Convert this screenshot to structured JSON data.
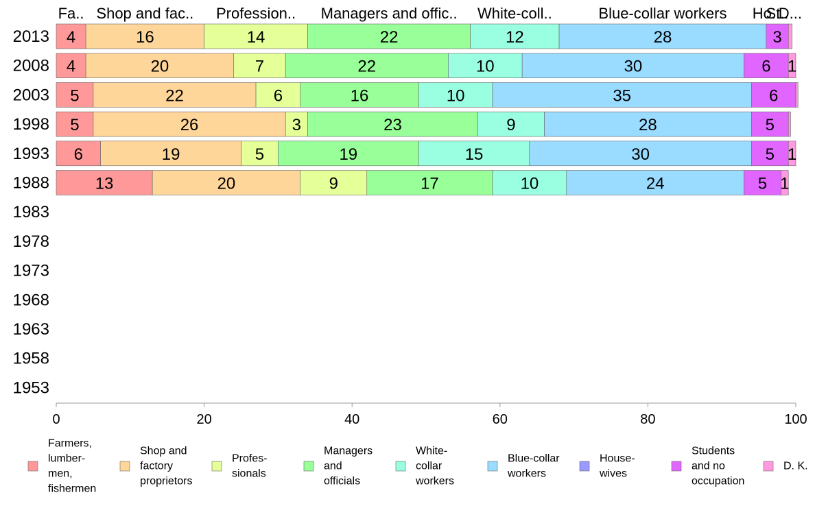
{
  "chart_data": {
    "type": "bar",
    "orientation": "horizontal",
    "stacked": true,
    "years": [
      "2013",
      "2008",
      "2003",
      "1998",
      "1993",
      "1988",
      "1983",
      "1978",
      "1973",
      "1968",
      "1963",
      "1958",
      "1953"
    ],
    "series": [
      {
        "name": "Farmers, lumber-men, fishermen",
        "legend_lines": [
          "Farmers,",
          "lumber-",
          "men,",
          "fishermen"
        ],
        "header": "Fa..",
        "color": "#ff9999",
        "values": [
          4,
          4,
          5,
          5,
          6,
          13,
          null,
          null,
          null,
          null,
          null,
          null,
          null
        ]
      },
      {
        "name": "Shop and factory proprietors",
        "legend_lines": [
          "Shop and",
          "factory",
          "proprietors"
        ],
        "header": "Shop and fac..",
        "color": "#ffd699",
        "values": [
          16,
          20,
          22,
          26,
          19,
          20,
          null,
          null,
          null,
          null,
          null,
          null,
          null
        ]
      },
      {
        "name": "Profes-sionals",
        "legend_lines": [
          "Profes-",
          "sionals"
        ],
        "header": "Profession..",
        "color": "#e5ff99",
        "values": [
          14,
          7,
          6,
          3,
          5,
          9,
          null,
          null,
          null,
          null,
          null,
          null,
          null
        ]
      },
      {
        "name": "Managers and officials",
        "legend_lines": [
          "Managers",
          "and",
          "officials"
        ],
        "header": "Managers and offic..",
        "color": "#99ff99",
        "values": [
          22,
          22,
          16,
          23,
          19,
          17,
          null,
          null,
          null,
          null,
          null,
          null,
          null
        ]
      },
      {
        "name": "White-collar workers",
        "legend_lines": [
          "White-",
          "collar",
          "workers"
        ],
        "header": "White-coll..",
        "color": "#99ffe0",
        "values": [
          12,
          10,
          10,
          9,
          15,
          10,
          null,
          null,
          null,
          null,
          null,
          null,
          null
        ]
      },
      {
        "name": "Blue-collar workers",
        "legend_lines": [
          "Blue-collar",
          "workers"
        ],
        "header": "Blue-collar workers",
        "color": "#99dcff",
        "values": [
          28,
          30,
          35,
          28,
          30,
          24,
          null,
          null,
          null,
          null,
          null,
          null,
          null
        ]
      },
      {
        "name": "House-wives",
        "legend_lines": [
          "House-",
          "wives"
        ],
        "header": "Ho..",
        "color": "#9999ff",
        "values": [
          0,
          0,
          0,
          0,
          0,
          0,
          null,
          null,
          null,
          null,
          null,
          null,
          null
        ]
      },
      {
        "name": "Students and no occupation",
        "legend_lines": [
          "Students",
          "and no",
          "occupation"
        ],
        "header": "St..",
        "color": "#e066ff",
        "values": [
          3,
          6,
          6,
          5,
          5,
          5,
          null,
          null,
          null,
          null,
          null,
          null,
          null
        ]
      },
      {
        "name": "D. K.",
        "legend_lines": [
          "D. K."
        ],
        "header": "D...",
        "color": "#ff99e0",
        "values": [
          0.5,
          1,
          0.3,
          0.3,
          1,
          1,
          null,
          null,
          null,
          null,
          null,
          null,
          null
        ]
      }
    ],
    "label_min_value": 1,
    "xlim": [
      0,
      100
    ],
    "xticks": [
      0,
      20,
      40,
      60,
      80,
      100
    ],
    "grid": false,
    "legend_position": "bottom"
  }
}
